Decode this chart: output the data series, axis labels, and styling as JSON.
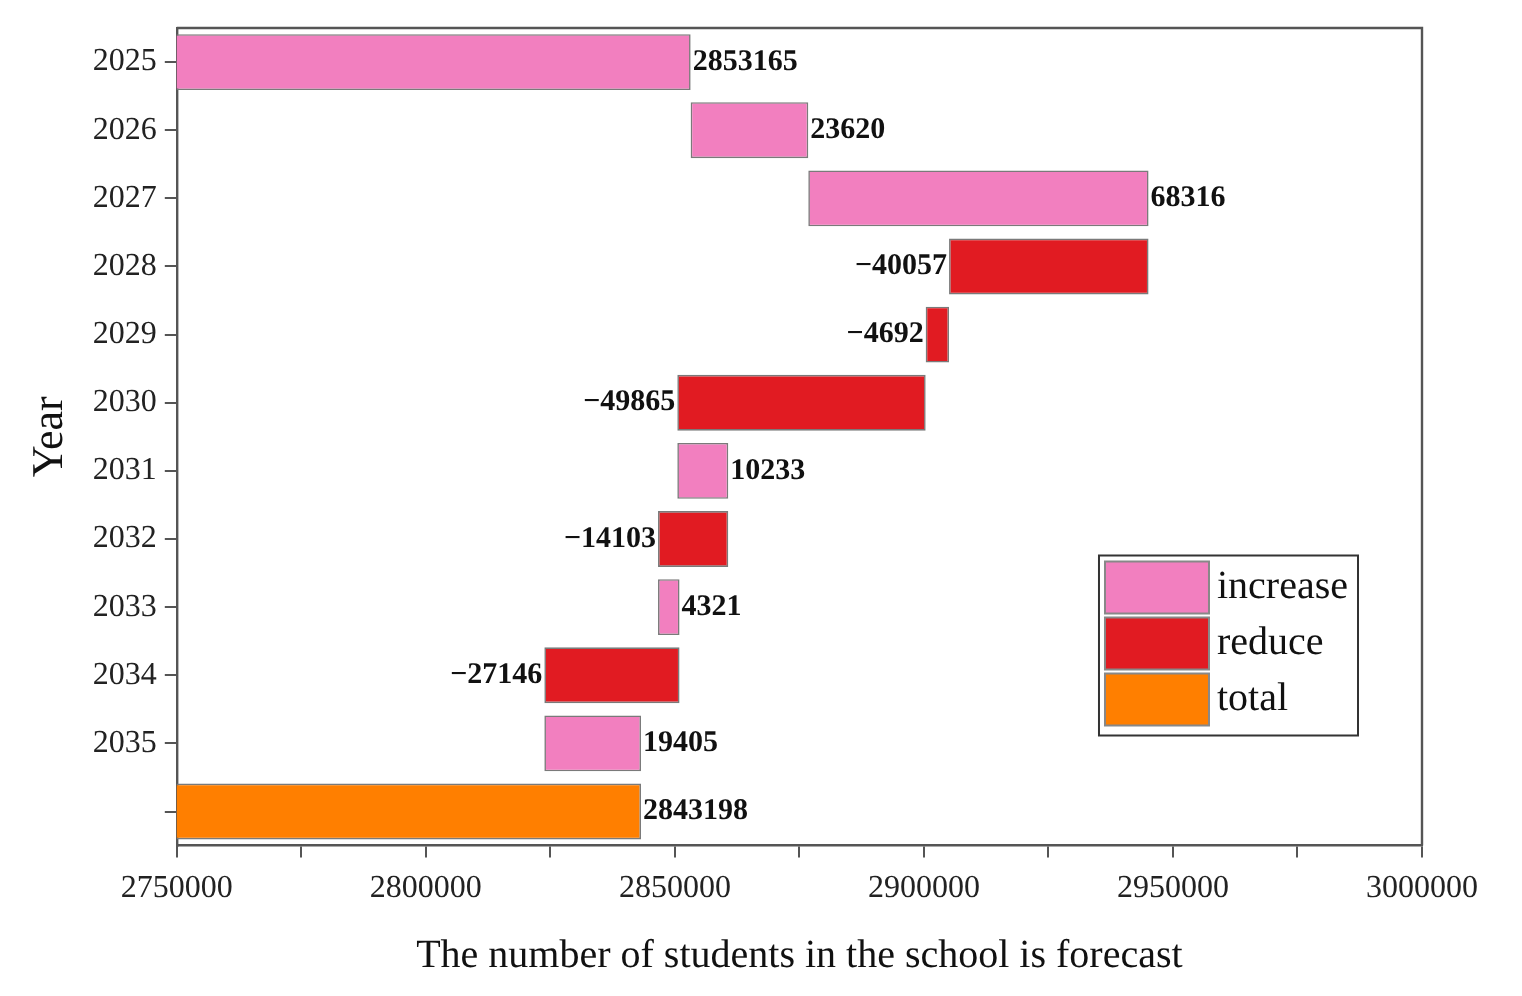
{
  "chart_data": {
    "type": "bar",
    "orientation": "horizontal",
    "xlabel": "The number of students in the school is forecast",
    "ylabel": "Year",
    "categories": [
      "2025",
      "2026",
      "2027",
      "2028",
      "2029",
      "2030",
      "2031",
      "2032",
      "2033",
      "2034",
      "2035",
      null
    ],
    "series": [
      {
        "name": "increase",
        "color": "#f27fbf",
        "base": [
          0,
          2853165,
          2876785,
          null,
          null,
          null,
          2850487,
          null,
          2846617,
          null,
          2823792,
          null
        ],
        "values": [
          2853165,
          23620,
          68316,
          null,
          null,
          null,
          10233,
          null,
          4321,
          null,
          19405,
          null
        ],
        "value_labels": [
          "2853165",
          "23620",
          "68316",
          null,
          null,
          null,
          "10233",
          null,
          "4321",
          null,
          "19405",
          null
        ]
      },
      {
        "name": "reduce",
        "color": "#e11b22",
        "base": [
          null,
          null,
          null,
          2945101,
          2905044,
          2900352,
          null,
          2860720,
          null,
          2850938,
          null,
          null
        ],
        "values": [
          null,
          null,
          null,
          -40057,
          -4692,
          -49865,
          null,
          -14103,
          null,
          -27146,
          null,
          null
        ],
        "value_labels": [
          null,
          null,
          null,
          "−40057",
          "−4692",
          "−49865",
          null,
          "−14103",
          null,
          "−27146",
          null,
          null
        ]
      },
      {
        "name": "total",
        "color": "#ff7f00",
        "base": [
          null,
          null,
          null,
          null,
          null,
          null,
          null,
          null,
          null,
          null,
          null,
          0
        ],
        "values": [
          null,
          null,
          null,
          null,
          null,
          null,
          null,
          null,
          null,
          null,
          null,
          2843198
        ],
        "value_labels": [
          null,
          null,
          null,
          null,
          null,
          null,
          null,
          null,
          null,
          null,
          null,
          "2843198"
        ]
      }
    ],
    "xlim": [
      2750000,
      3000000
    ],
    "xticks": [
      2750000,
      {
        "value": 2775000,
        "label": null
      },
      2800000,
      {
        "value": 2825000,
        "label": null
      },
      2850000,
      {
        "value": 2875000,
        "label": null
      },
      2900000,
      {
        "value": 2925000,
        "label": null
      },
      2950000,
      {
        "value": 2975000,
        "label": null
      },
      3000000
    ],
    "grid": false,
    "legend": "bottom right"
  }
}
